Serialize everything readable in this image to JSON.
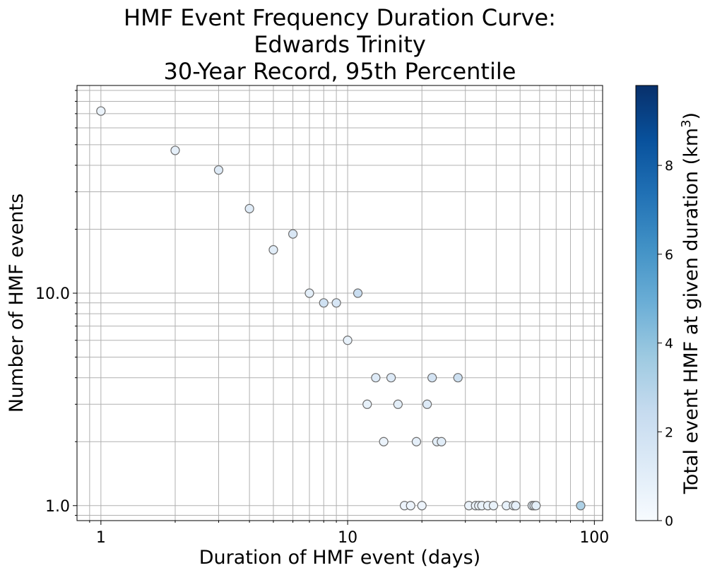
{
  "chart_data": {
    "type": "scatter",
    "title_lines": [
      "HMF Event Frequency Duration Curve:",
      "Edwards Trinity",
      "30-Year Record, 95th Percentile"
    ],
    "xlabel": "Duration of HMF event (days)",
    "ylabel": "Number of HMF events",
    "x_scale": "log",
    "y_scale": "log",
    "xlim": [
      0.8,
      108
    ],
    "ylim": [
      0.85,
      95
    ],
    "x_ticks": [
      {
        "value": 1,
        "label": "1"
      },
      {
        "value": 10,
        "label": "10"
      },
      {
        "value": 100,
        "label": "100"
      }
    ],
    "y_ticks": [
      {
        "value": 1,
        "label": "1.0"
      },
      {
        "value": 10,
        "label": "10.0"
      }
    ],
    "grid": true,
    "colorbar": {
      "label_prefix": "Total event HMF at given duration (km",
      "label_sup": "3",
      "label_suffix": ")",
      "min": 0,
      "max": 9.8,
      "ticks": [
        {
          "value": 0,
          "label": "0"
        },
        {
          "value": 2,
          "label": "2"
        },
        {
          "value": 4,
          "label": "4"
        },
        {
          "value": 6,
          "label": "6"
        },
        {
          "value": 8,
          "label": "8"
        }
      ],
      "colormap": "Blues"
    },
    "points": [
      {
        "x": 1,
        "y": 72,
        "c": 0.6
      },
      {
        "x": 2,
        "y": 47,
        "c": 0.9
      },
      {
        "x": 3,
        "y": 38,
        "c": 1.2
      },
      {
        "x": 4,
        "y": 25,
        "c": 1.2
      },
      {
        "x": 5,
        "y": 16,
        "c": 1.1
      },
      {
        "x": 6,
        "y": 19,
        "c": 1.5
      },
      {
        "x": 7,
        "y": 10,
        "c": 1.0
      },
      {
        "x": 8,
        "y": 9,
        "c": 2.0
      },
      {
        "x": 9,
        "y": 9,
        "c": 1.6
      },
      {
        "x": 10,
        "y": 6,
        "c": 0.8
      },
      {
        "x": 11,
        "y": 10,
        "c": 2.3
      },
      {
        "x": 12,
        "y": 3,
        "c": 0.8
      },
      {
        "x": 13,
        "y": 4,
        "c": 1.3
      },
      {
        "x": 14,
        "y": 2,
        "c": 0.6
      },
      {
        "x": 15,
        "y": 4,
        "c": 1.3
      },
      {
        "x": 16,
        "y": 3,
        "c": 1.0
      },
      {
        "x": 17,
        "y": 1,
        "c": 0.5
      },
      {
        "x": 18,
        "y": 1,
        "c": 0.5
      },
      {
        "x": 19,
        "y": 2,
        "c": 0.9
      },
      {
        "x": 20,
        "y": 1,
        "c": 0.5
      },
      {
        "x": 21,
        "y": 3,
        "c": 1.3
      },
      {
        "x": 22,
        "y": 4,
        "c": 1.8
      },
      {
        "x": 23,
        "y": 2,
        "c": 1.0
      },
      {
        "x": 24,
        "y": 2,
        "c": 1.1
      },
      {
        "x": 28,
        "y": 4,
        "c": 2.1
      },
      {
        "x": 31,
        "y": 1,
        "c": 0.6
      },
      {
        "x": 33,
        "y": 1,
        "c": 0.6
      },
      {
        "x": 34,
        "y": 1,
        "c": 0.6
      },
      {
        "x": 35,
        "y": 1,
        "c": 0.7
      },
      {
        "x": 37,
        "y": 1,
        "c": 0.7
      },
      {
        "x": 39,
        "y": 1,
        "c": 0.7
      },
      {
        "x": 44,
        "y": 1,
        "c": 0.8
      },
      {
        "x": 47,
        "y": 1,
        "c": 0.8
      },
      {
        "x": 48,
        "y": 1,
        "c": 0.9
      },
      {
        "x": 56,
        "y": 1,
        "c": 1.0
      },
      {
        "x": 57,
        "y": 1,
        "c": 1.0
      },
      {
        "x": 58,
        "y": 1,
        "c": 1.0
      },
      {
        "x": 88,
        "y": 1,
        "c": 3.2
      }
    ]
  }
}
